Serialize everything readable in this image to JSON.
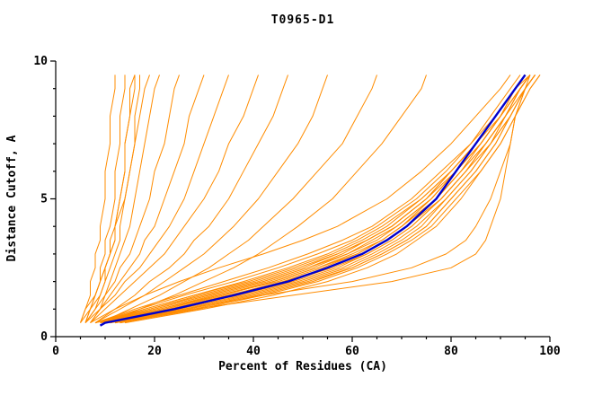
{
  "chart_data": {
    "type": "line",
    "title": "T0965-D1",
    "xlabel": "Percent of Residues (CA)",
    "ylabel": "Distance Cutoff, A",
    "xlim": [
      0,
      100
    ],
    "ylim": [
      0,
      10
    ],
    "x_major_ticks": [
      0,
      20,
      40,
      60,
      80,
      100
    ],
    "x_minor_step": 5,
    "y_major_ticks": [
      0,
      5,
      10
    ],
    "y_minor_step": 1,
    "grid": "off",
    "legend": "none",
    "axis_color": "#000000",
    "model_color": "#ff8c00",
    "reference_color": "#0000cd",
    "y_grid": [
      0.5,
      1,
      1.5,
      2,
      2.5,
      3,
      3.5,
      4,
      5,
      6,
      7,
      8,
      9,
      9.5
    ],
    "series_note": "models = x(percent) sampled at y_grid distance cutoffs; reference is the thick blue curve",
    "models": [
      [
        9,
        20,
        31,
        42,
        51,
        58,
        63,
        68,
        75,
        80,
        85,
        89,
        93,
        95
      ],
      [
        10,
        23,
        35,
        46,
        55,
        62,
        67,
        71,
        77,
        82,
        87,
        91,
        94,
        96
      ],
      [
        8,
        18,
        28,
        39,
        48,
        56,
        62,
        67,
        74,
        80,
        85,
        90,
        94,
        96
      ],
      [
        11,
        25,
        38,
        49,
        58,
        64,
        69,
        73,
        79,
        84,
        88,
        92,
        95,
        97
      ],
      [
        9,
        21,
        33,
        45,
        54,
        61,
        66,
        70,
        76,
        81,
        86,
        90,
        93,
        95
      ],
      [
        12,
        27,
        40,
        51,
        60,
        66,
        71,
        75,
        80,
        85,
        89,
        92,
        95,
        97
      ],
      [
        8,
        17,
        26,
        36,
        45,
        53,
        60,
        65,
        73,
        79,
        84,
        89,
        93,
        95
      ],
      [
        10,
        22,
        34,
        44,
        53,
        60,
        66,
        70,
        77,
        82,
        86,
        90,
        94,
        96
      ],
      [
        13,
        29,
        42,
        53,
        61,
        67,
        72,
        76,
        81,
        86,
        90,
        93,
        96,
        98
      ],
      [
        9,
        19,
        30,
        41,
        50,
        57,
        63,
        68,
        75,
        81,
        86,
        90,
        94,
        96
      ],
      [
        11,
        24,
        36,
        47,
        56,
        63,
        68,
        72,
        78,
        83,
        87,
        91,
        94,
        96
      ],
      [
        10,
        21,
        32,
        43,
        52,
        59,
        65,
        69,
        76,
        81,
        86,
        90,
        93,
        95
      ],
      [
        8,
        16,
        25,
        34,
        43,
        51,
        58,
        64,
        72,
        78,
        84,
        88,
        92,
        94
      ],
      [
        12,
        26,
        39,
        50,
        59,
        65,
        70,
        74,
        79,
        84,
        88,
        92,
        95,
        97
      ],
      [
        9,
        20,
        31,
        42,
        51,
        59,
        64,
        69,
        76,
        81,
        86,
        90,
        94,
        96
      ],
      [
        14,
        30,
        44,
        55,
        63,
        69,
        73,
        77,
        82,
        86,
        90,
        93,
        96,
        98
      ],
      [
        10,
        23,
        35,
        46,
        55,
        62,
        67,
        71,
        78,
        83,
        87,
        91,
        94,
        96
      ],
      [
        11,
        24,
        37,
        48,
        57,
        63,
        68,
        72,
        78,
        83,
        88,
        91,
        95,
        97
      ],
      [
        9,
        18,
        28,
        38,
        47,
        55,
        61,
        66,
        74,
        80,
        85,
        89,
        93,
        95
      ],
      [
        13,
        28,
        41,
        52,
        60,
        66,
        71,
        75,
        80,
        85,
        89,
        92,
        95,
        97
      ],
      [
        10,
        22,
        33,
        44,
        53,
        61,
        66,
        70,
        77,
        82,
        87,
        91,
        94,
        96
      ],
      [
        8,
        19,
        29,
        40,
        49,
        57,
        63,
        68,
        75,
        80,
        85,
        89,
        93,
        96
      ],
      [
        5,
        6,
        7,
        7,
        8,
        8,
        9,
        9,
        10,
        10,
        11,
        11,
        12,
        12
      ],
      [
        6,
        7,
        8,
        9,
        9,
        10,
        10,
        11,
        12,
        12,
        13,
        13,
        14,
        14
      ],
      [
        5,
        6,
        8,
        9,
        10,
        11,
        11,
        12,
        13,
        14,
        14,
        15,
        15,
        16
      ],
      [
        6,
        8,
        9,
        10,
        11,
        12,
        13,
        13,
        14,
        15,
        16,
        16,
        17,
        17
      ],
      [
        7,
        9,
        10,
        11,
        12,
        13,
        14,
        15,
        16,
        17,
        18,
        19,
        20,
        21
      ],
      [
        5,
        7,
        8,
        9,
        10,
        11,
        12,
        12,
        14,
        15,
        16,
        17,
        18,
        19
      ],
      [
        6,
        7,
        9,
        10,
        10,
        11,
        12,
        12,
        13,
        14,
        14,
        15,
        16,
        16
      ],
      [
        6,
        8,
        10,
        12,
        13,
        15,
        16,
        17,
        19,
        20,
        22,
        23,
        24,
        25
      ],
      [
        7,
        9,
        11,
        13,
        15,
        17,
        18,
        20,
        22,
        24,
        26,
        27,
        29,
        30
      ],
      [
        6,
        9,
        12,
        14,
        17,
        19,
        21,
        23,
        26,
        28,
        30,
        32,
        34,
        35
      ],
      [
        7,
        10,
        13,
        16,
        19,
        22,
        24,
        26,
        30,
        33,
        35,
        38,
        40,
        41
      ],
      [
        8,
        12,
        16,
        19,
        23,
        26,
        28,
        31,
        35,
        38,
        41,
        44,
        46,
        47
      ],
      [
        8,
        13,
        18,
        22,
        26,
        30,
        33,
        36,
        41,
        45,
        49,
        52,
        54,
        55
      ],
      [
        9,
        15,
        21,
        26,
        31,
        35,
        39,
        42,
        48,
        53,
        58,
        61,
        64,
        65
      ],
      [
        10,
        17,
        24,
        30,
        36,
        41,
        45,
        49,
        56,
        61,
        66,
        70,
        74,
        75
      ],
      [
        12,
        28,
        48,
        68,
        80,
        85,
        87,
        88,
        90,
        91,
        92,
        93,
        95,
        96
      ],
      [
        11,
        26,
        42,
        60,
        72,
        79,
        83,
        85,
        88,
        90,
        92,
        93,
        95,
        97
      ],
      [
        7,
        12,
        18,
        25,
        33,
        42,
        50,
        57,
        67,
        74,
        80,
        85,
        90,
        92
      ]
    ],
    "reference": {
      "y": [
        0.4,
        0.5,
        1,
        1.5,
        2,
        2.5,
        3,
        3.5,
        4,
        4.5,
        5,
        5.5,
        6,
        6.5,
        7,
        7.5,
        8,
        8.5,
        9,
        9.5
      ],
      "x": [
        9,
        10,
        24,
        36,
        47,
        55,
        62,
        67,
        71,
        74,
        77,
        79,
        81,
        83,
        85,
        87,
        89,
        91,
        93,
        95
      ]
    }
  }
}
